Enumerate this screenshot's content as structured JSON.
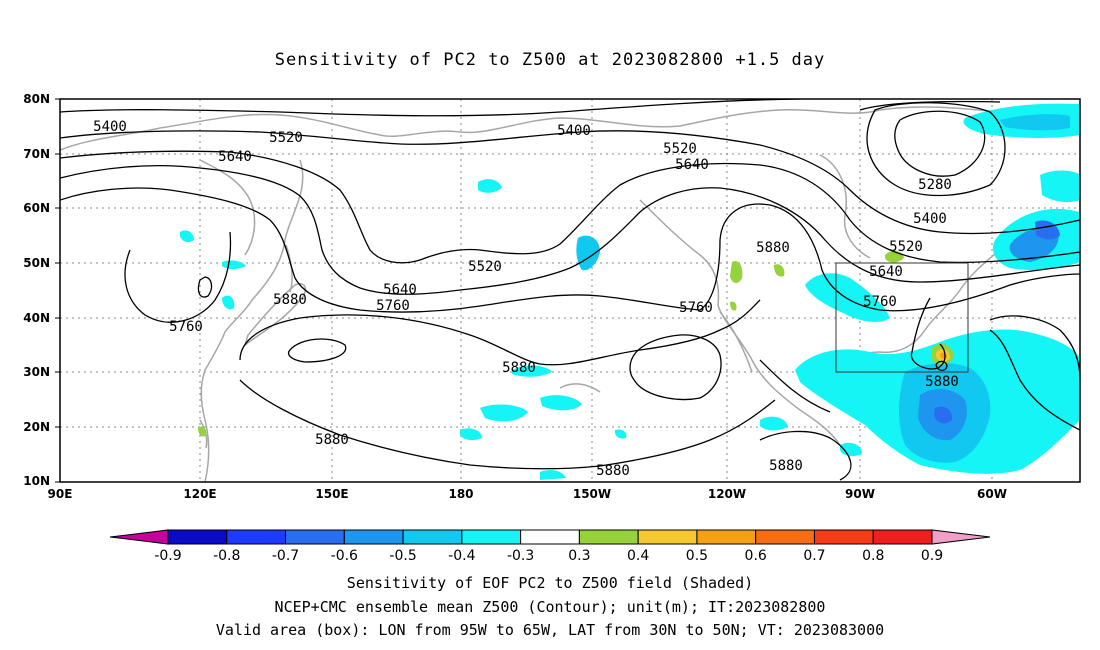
{
  "title": "Sensitivity of PC2 to Z500 at 2023082800 +1.5 day",
  "map": {
    "lat_labels": [
      "80N",
      "70N",
      "60N",
      "50N",
      "40N",
      "30N",
      "20N",
      "10N"
    ],
    "lon_labels": [
      "90E",
      "120E",
      "150E",
      "180",
      "150W",
      "120W",
      "90W",
      "60W"
    ],
    "lon_range": [
      90,
      295
    ],
    "lat_range": [
      10,
      80
    ],
    "contour_unit": "m",
    "contour_labels": [
      "5400",
      "5520",
      "5640",
      "5400",
      "5520",
      "5640",
      "5280",
      "5400",
      "5520",
      "5640",
      "5760",
      "5880",
      "5520",
      "5640",
      "5760",
      "5880",
      "5760",
      "5760",
      "5880",
      "5880",
      "5880",
      "5880",
      "5880",
      "5880"
    ],
    "valid_box": {
      "lon_min": -95,
      "lon_max": -65,
      "lat_min": 30,
      "lat_max": 50
    },
    "colors": {
      "contour": "#000000",
      "coast": "#a6a6a6",
      "grid": "#888888"
    }
  },
  "colorbar": {
    "labels": [
      "-0.9",
      "-0.8",
      "-0.7",
      "-0.6",
      "-0.5",
      "-0.4",
      "-0.3",
      "0.3",
      "0.4",
      "0.5",
      "0.6",
      "0.7",
      "0.8",
      "0.9"
    ],
    "colors": [
      "#c8009c",
      "#0a0ac8",
      "#1e3cff",
      "#2a6ef0",
      "#1e96f0",
      "#10c8f0",
      "#16f5f5",
      "#ffffff",
      "#96d23c",
      "#f5c832",
      "#f5a014",
      "#f56e14",
      "#f53c14",
      "#f01e1e",
      "#f0a0c8"
    ]
  },
  "captions": [
    "Sensitivity of EOF PC2 to Z500 field (Shaded)",
    "NCEP+CMC ensemble mean Z500 (Contour); unit(m); IT:2023082800",
    "Valid area (box): LON from 95W to 65W, LAT from 30N to 50N; VT: 2023083000"
  ]
}
